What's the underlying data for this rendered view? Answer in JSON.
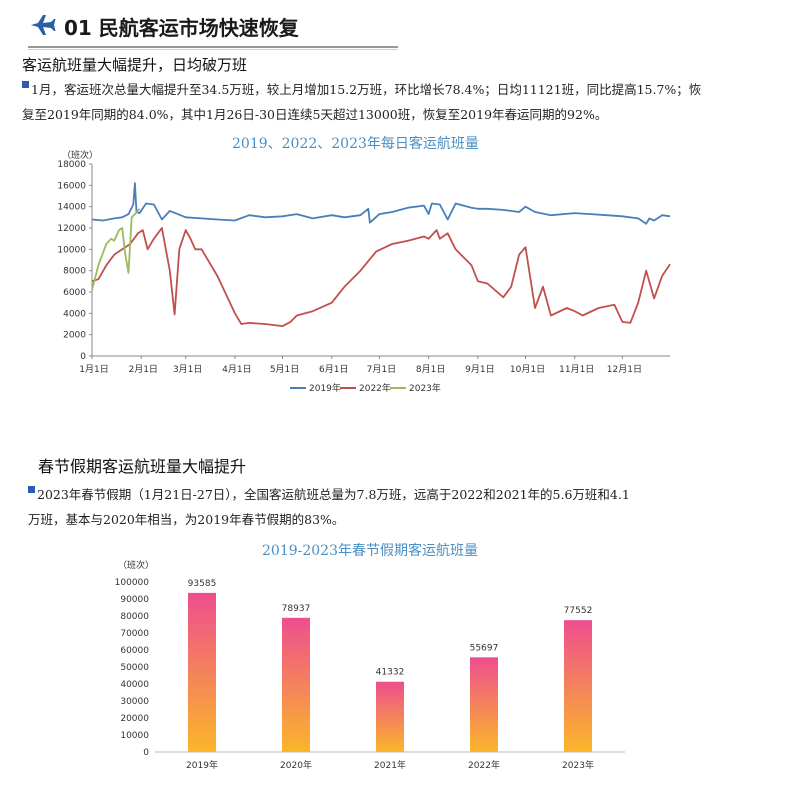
{
  "header": {
    "title": "01 民航客运市场快速恢复",
    "icon": "airplane-icon",
    "accent": "#2b5ea8"
  },
  "section1": {
    "title": "客运航班量大幅提升，日均破万班",
    "text_line1": "1月，客运班次总量大幅提升至34.5万班，较上月增加15.2万班，环比增长78.4%；日均11121班，同比提高15.7%；恢",
    "text_line2": "复至2019年同期的84.0%，其中1月26日-30日连续5天超过13000班，恢复至2019年春运同期的92%。"
  },
  "section2": {
    "title": "春节假期客运航班量大幅提升",
    "text_line1": "2023年春节假期（1月21日-27日），全国客运航班总量为7.8万班，远高于2022和2021年的5.6万班和4.1",
    "text_line2": "万班，基本与2020年相当，为2019年春节假期的83%。"
  },
  "chart_data": [
    {
      "type": "line",
      "title": "2019、2022、2023年每日客运航班量",
      "ylabel": "（班次）",
      "ylim": [
        0,
        18000
      ],
      "yticks": [
        0,
        2000,
        4000,
        6000,
        8000,
        10000,
        12000,
        14000,
        16000,
        18000
      ],
      "x_unit": "day_of_year",
      "xlim": [
        1,
        365
      ],
      "x_tick_labels": [
        "1月1日",
        "2月1日",
        "3月1日",
        "4月1日",
        "5月1日",
        "6月1日",
        "7月1日",
        "8月1日",
        "9月1日",
        "10月1日",
        "11月1日",
        "12月1日"
      ],
      "x_tick_days": [
        1,
        32,
        60,
        91,
        121,
        152,
        182,
        213,
        244,
        274,
        305,
        335
      ],
      "legend_position": "bottom",
      "series": [
        {
          "name": "2019年",
          "color": "#4a7ebb",
          "x": [
            1,
            8,
            15,
            20,
            24,
            27,
            28,
            29,
            31,
            35,
            40,
            45,
            50,
            55,
            60,
            70,
            80,
            91,
            100,
            110,
            121,
            130,
            140,
            152,
            160,
            170,
            175,
            176,
            182,
            190,
            200,
            210,
            213,
            215,
            220,
            225,
            230,
            240,
            244,
            250,
            260,
            270,
            274,
            280,
            290,
            305,
            315,
            325,
            335,
            345,
            350,
            352,
            355,
            360,
            365
          ],
          "y": [
            12800,
            12700,
            12900,
            13000,
            13300,
            14200,
            16200,
            13500,
            13400,
            14300,
            14200,
            12800,
            13600,
            13300,
            13000,
            12900,
            12800,
            12700,
            13200,
            13000,
            13100,
            13300,
            12900,
            13200,
            13000,
            13200,
            13800,
            12500,
            13300,
            13500,
            13900,
            14100,
            13300,
            14300,
            14200,
            12800,
            14300,
            13900,
            13800,
            13800,
            13700,
            13500,
            14000,
            13500,
            13200,
            13400,
            13300,
            13200,
            13100,
            12900,
            12400,
            12900,
            12700,
            13200,
            13100
          ]
        },
        {
          "name": "2022年",
          "color": "#c0504d",
          "x": [
            1,
            5,
            10,
            15,
            20,
            25,
            30,
            33,
            36,
            40,
            45,
            50,
            53,
            56,
            60,
            63,
            66,
            70,
            80,
            91,
            95,
            100,
            110,
            121,
            126,
            130,
            140,
            152,
            160,
            170,
            180,
            190,
            200,
            210,
            213,
            218,
            220,
            225,
            230,
            240,
            244,
            250,
            260,
            265,
            270,
            274,
            280,
            285,
            290,
            300,
            305,
            310,
            320,
            330,
            335,
            340,
            345,
            350,
            355,
            360,
            365
          ],
          "y": [
            7000,
            7200,
            8500,
            9500,
            10000,
            10500,
            11500,
            11800,
            10000,
            11000,
            12000,
            8000,
            3900,
            10000,
            11800,
            11000,
            10000,
            10000,
            7500,
            4000,
            3000,
            3100,
            3000,
            2800,
            3200,
            3800,
            4200,
            5000,
            6500,
            8000,
            9800,
            10500,
            10800,
            11200,
            11000,
            11800,
            11000,
            11500,
            10000,
            8500,
            7000,
            6800,
            5500,
            6500,
            9500,
            10200,
            4500,
            6500,
            3800,
            4500,
            4200,
            3800,
            4500,
            4800,
            3200,
            3100,
            5000,
            8000,
            5400,
            7500,
            8600
          ]
        },
        {
          "name": "2023年",
          "color": "#9bbb59",
          "x": [
            1,
            5,
            10,
            13,
            15,
            18,
            20,
            22,
            24,
            26,
            28,
            31
          ],
          "y": [
            6200,
            8500,
            10500,
            11000,
            10800,
            11800,
            12000,
            9500,
            7800,
            13000,
            13300,
            13800
          ]
        }
      ]
    },
    {
      "type": "bar",
      "title": "2019-2023年春节假期客运航班量",
      "ylabel": "（班次）",
      "ylim": [
        0,
        100000
      ],
      "yticks": [
        0,
        10000,
        20000,
        30000,
        40000,
        50000,
        60000,
        70000,
        80000,
        90000,
        100000
      ],
      "categories": [
        "2019年",
        "2020年",
        "2021年",
        "2022年",
        "2023年"
      ],
      "values": [
        93585,
        78937,
        41332,
        55697,
        77552
      ],
      "color_top": "#ee4e8f",
      "color_bottom": "#fbb62a"
    }
  ]
}
